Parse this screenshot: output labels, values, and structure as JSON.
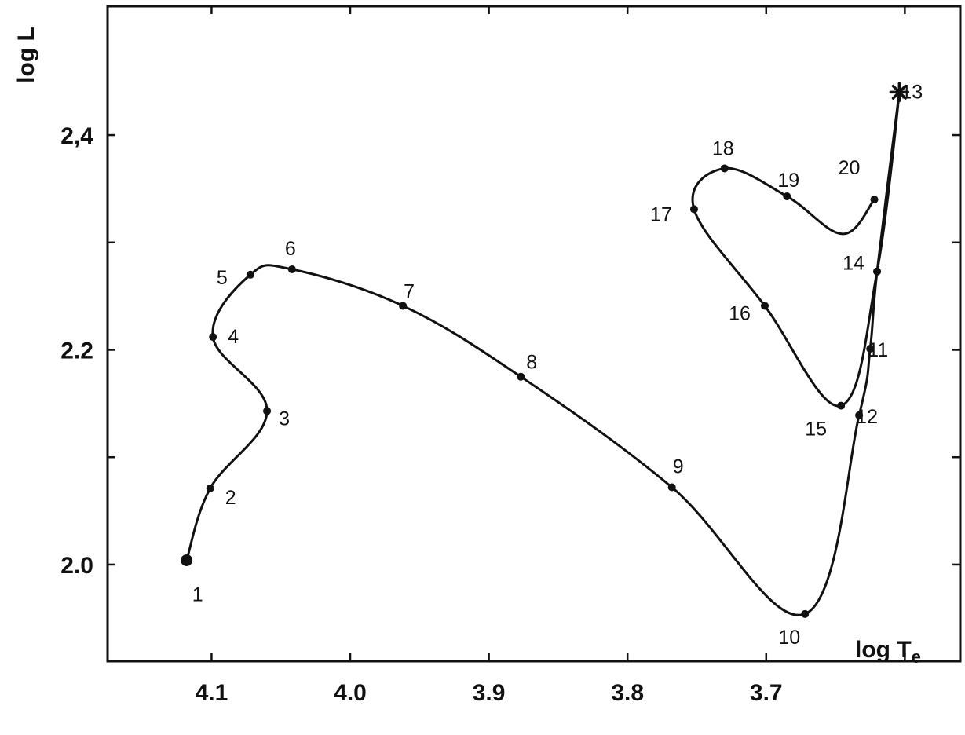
{
  "chart_data": {
    "type": "line",
    "xlabel": "log T",
    "xlabel_subscript": "e",
    "ylabel": "log L",
    "x_reversed": true,
    "xlim": [
      3.56,
      4.175
    ],
    "ylim": [
      1.91,
      2.52
    ],
    "x_ticks": [
      4.1,
      4.0,
      3.9,
      3.8,
      3.7,
      3.6
    ],
    "x_tick_labels": [
      "4.1",
      "4.0",
      "3.9",
      "3.8",
      "3.7",
      ""
    ],
    "y_ticks": [
      2.0,
      2.1,
      2.2,
      2.3,
      2.4
    ],
    "y_tick_labels": [
      "2.0",
      "",
      "2.2",
      "",
      "2,4"
    ],
    "grid": false,
    "series": [
      {
        "points": [
          {
            "label": "1",
            "x": 4.118,
            "y": 2.004
          },
          {
            "label": "2",
            "x": 4.101,
            "y": 2.071
          },
          {
            "label": "3",
            "x": 4.06,
            "y": 2.143
          },
          {
            "label": "4",
            "x": 4.099,
            "y": 2.212
          },
          {
            "label": "5",
            "x": 4.072,
            "y": 2.27
          },
          {
            "label": "6",
            "x": 4.042,
            "y": 2.275
          },
          {
            "label": "7",
            "x": 3.962,
            "y": 2.241
          },
          {
            "label": "8",
            "x": 3.877,
            "y": 2.175
          },
          {
            "label": "9",
            "x": 3.768,
            "y": 2.072
          },
          {
            "label": "10",
            "x": 3.672,
            "y": 1.954
          },
          {
            "label": "12",
            "x": 3.633,
            "y": 2.139
          },
          {
            "label": "11",
            "x": 3.625,
            "y": 2.201
          },
          {
            "label": "14",
            "x": 3.62,
            "y": 2.273
          },
          {
            "label": "13",
            "x": 3.604,
            "y": 2.44
          },
          {
            "label": "14",
            "x": 3.62,
            "y": 2.273
          },
          {
            "label": "15",
            "x": 3.646,
            "y": 2.148
          },
          {
            "label": "16",
            "x": 3.701,
            "y": 2.241
          },
          {
            "label": "17",
            "x": 3.752,
            "y": 2.331
          },
          {
            "label": "18",
            "x": 3.73,
            "y": 2.369
          },
          {
            "label": "19",
            "x": 3.685,
            "y": 2.343
          },
          {
            "label": "",
            "x": 3.645,
            "y": 2.308
          },
          {
            "label": "20",
            "x": 3.622,
            "y": 2.34
          }
        ]
      }
    ],
    "labels": [
      {
        "text": "1",
        "ref": 0
      },
      {
        "text": "2",
        "ref": 1
      },
      {
        "text": "3",
        "ref": 2
      },
      {
        "text": "4",
        "ref": 3
      },
      {
        "text": "5",
        "ref": 4
      },
      {
        "text": "6",
        "ref": 5
      },
      {
        "text": "7",
        "ref": 6
      },
      {
        "text": "8",
        "ref": 7
      },
      {
        "text": "9",
        "ref": 8
      },
      {
        "text": "10",
        "ref": 9
      },
      {
        "text": "12",
        "ref": 10
      },
      {
        "text": "11",
        "ref": 11
      },
      {
        "text": "14",
        "ref": 12
      },
      {
        "text": "13",
        "ref": 13
      },
      {
        "text": "15",
        "ref": 15
      },
      {
        "text": "16",
        "ref": 16
      },
      {
        "text": "17",
        "ref": 17
      },
      {
        "text": "18",
        "ref": 18
      },
      {
        "text": "19",
        "ref": 19
      },
      {
        "text": "20",
        "ref": 21
      }
    ]
  }
}
